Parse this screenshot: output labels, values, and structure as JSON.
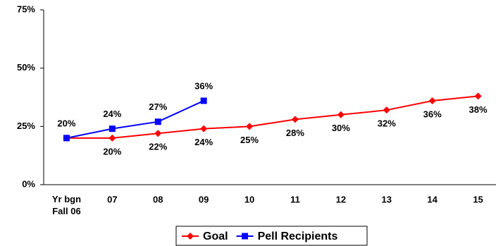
{
  "chart_data": {
    "type": "line",
    "categories": [
      "Yr bgn\nFall 06",
      "07",
      "08",
      "09",
      "10",
      "11",
      "12",
      "13",
      "14",
      "15"
    ],
    "series": [
      {
        "name": "Goal",
        "color": "#ff0000",
        "marker": "diamond",
        "values": [
          20,
          20,
          22,
          24,
          25,
          28,
          30,
          32,
          36,
          38
        ],
        "value_labels": [
          null,
          "20%",
          "22%",
          "24%",
          "25%",
          "28%",
          "30%",
          "32%",
          "36%",
          "38%"
        ]
      },
      {
        "name": "Pell Recipients",
        "color": "#0000ff",
        "marker": "square",
        "values": [
          20,
          24,
          27,
          36,
          null,
          null,
          null,
          null,
          null,
          null
        ],
        "value_labels": [
          "20%",
          "24%",
          "27%",
          "36%",
          null,
          null,
          null,
          null,
          null,
          null
        ]
      }
    ],
    "ylim": [
      0,
      75
    ],
    "yticks": [
      {
        "value": 0,
        "label": "0%"
      },
      {
        "value": 25,
        "label": "25%"
      },
      {
        "value": 50,
        "label": "50%"
      },
      {
        "value": 75,
        "label": "75%"
      }
    ],
    "grid": false,
    "legend": "bottom"
  }
}
